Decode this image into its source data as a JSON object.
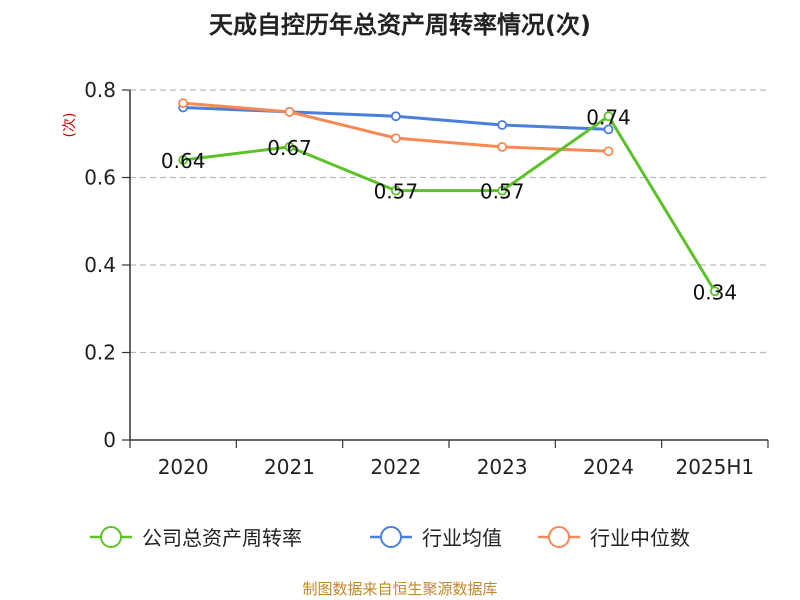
{
  "chart_data": {
    "type": "line",
    "title": "天成自控历年总资产周转率情况(次)",
    "ylabel": "(次)",
    "xlabel": "",
    "categories": [
      "2020",
      "2021",
      "2022",
      "2023",
      "2024",
      "2025H1"
    ],
    "ylim": [
      0,
      0.8
    ],
    "yticks": [
      0,
      0.2,
      0.4,
      0.6,
      0.8
    ],
    "ytick_labels": [
      "0",
      "0.2",
      "0.4",
      "0.6",
      "0.8"
    ],
    "grid": true,
    "legend_position": "bottom",
    "series": [
      {
        "name": "公司总资产周转率",
        "color": "#5dc22a",
        "values": [
          0.64,
          0.67,
          0.57,
          0.57,
          0.74,
          0.34
        ],
        "labels": [
          "0.64",
          "0.67",
          "0.57",
          "0.57",
          "0.74",
          "0.34"
        ]
      },
      {
        "name": "行业均值",
        "color": "#4a7fdc",
        "values": [
          0.76,
          0.75,
          0.74,
          0.72,
          0.71,
          null
        ]
      },
      {
        "name": "行业中位数",
        "color": "#f58a55",
        "values": [
          0.77,
          0.75,
          0.69,
          0.67,
          0.66,
          null
        ]
      }
    ]
  },
  "colors": {
    "ylabel": "#cc0000",
    "source": "#c0882a",
    "axis": "#333333",
    "grid": "#bbbbbb"
  },
  "source_text": "制图数据来自恒生聚源数据库"
}
